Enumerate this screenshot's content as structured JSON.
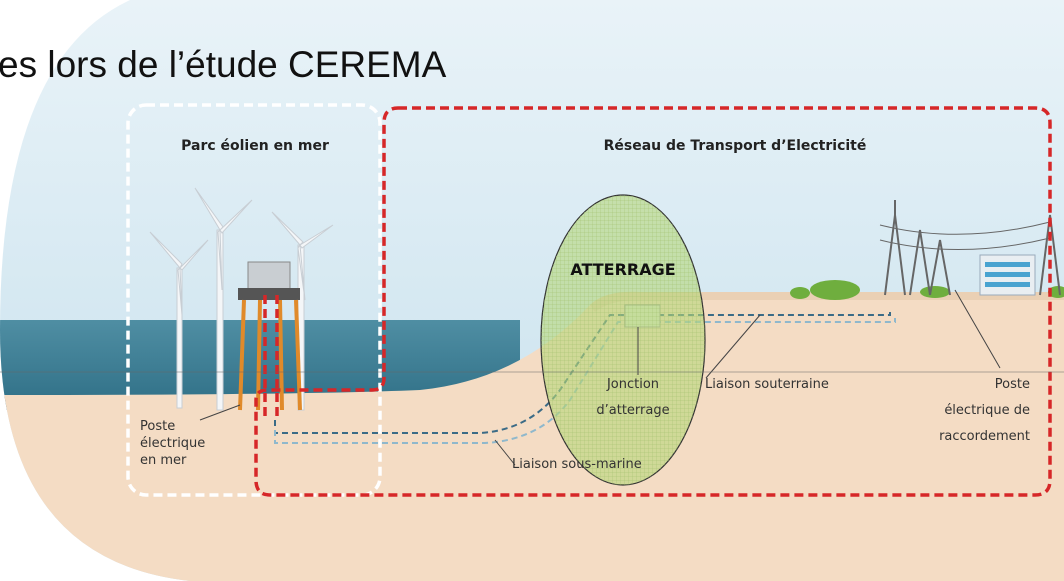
{
  "title": "es lors de l’étude CEREMA",
  "zones": [
    {
      "label": "Parc éolien en mer"
    },
    {
      "label": "Réseau de Transport d’Electricité"
    }
  ],
  "landing": {
    "label": "ATTERRAGE"
  },
  "labels": {
    "offshore_substation": [
      "Poste",
      "électrique",
      "en mer"
    ],
    "junction": [
      "Jonction",
      "d’atterrage"
    ],
    "subsea_link": "Liaison sous-marine",
    "underground_link": "Liaison souterraine",
    "grid_substation": [
      "Poste",
      "électrique de",
      "raccordement"
    ]
  }
}
